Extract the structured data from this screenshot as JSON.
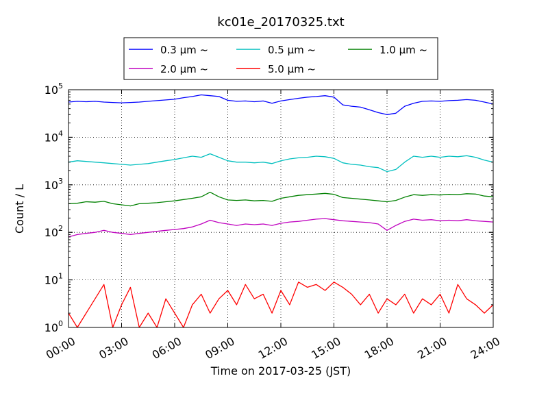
{
  "chart_data": {
    "type": "line",
    "title": "kc01e_20170325.txt",
    "xlabel": "Time on 2017-03-25 (JST)",
    "ylabel": "Count / L",
    "x_range_hours": [
      0,
      24
    ],
    "ylim": [
      1,
      100000
    ],
    "yscale": "log",
    "grid": true,
    "legend_position": "top",
    "x_tick_labels": [
      "00:00",
      "03:00",
      "06:00",
      "09:00",
      "12:00",
      "15:00",
      "18:00",
      "21:00",
      "24:00"
    ],
    "y_tick_labels": [
      {
        "base": "10",
        "exp": "0",
        "value": 1
      },
      {
        "base": "10",
        "exp": "1",
        "value": 10
      },
      {
        "base": "10",
        "exp": "2",
        "value": 100
      },
      {
        "base": "10",
        "exp": "3",
        "value": 1000
      },
      {
        "base": "10",
        "exp": "4",
        "value": 10000
      },
      {
        "base": "10",
        "exp": "5",
        "value": 100000
      }
    ],
    "series": [
      {
        "name": "0.3 µm ~",
        "color": "#0000ff",
        "points": [
          [
            0,
            55000
          ],
          [
            0.5,
            57000
          ],
          [
            1,
            56000
          ],
          [
            1.5,
            57000
          ],
          [
            2,
            55000
          ],
          [
            2.5,
            54000
          ],
          [
            3,
            53000
          ],
          [
            3.5,
            54000
          ],
          [
            4,
            55000
          ],
          [
            4.5,
            57000
          ],
          [
            5,
            59000
          ],
          [
            5.5,
            61000
          ],
          [
            6,
            63000
          ],
          [
            6.5,
            68000
          ],
          [
            7,
            72000
          ],
          [
            7.5,
            78000
          ],
          [
            8,
            75000
          ],
          [
            8.5,
            72000
          ],
          [
            9,
            60000
          ],
          [
            9.5,
            57000
          ],
          [
            10,
            58000
          ],
          [
            10.5,
            56000
          ],
          [
            11,
            58000
          ],
          [
            11.5,
            52000
          ],
          [
            12,
            58000
          ],
          [
            12.5,
            62000
          ],
          [
            13,
            66000
          ],
          [
            13.5,
            70000
          ],
          [
            14,
            72000
          ],
          [
            14.5,
            75000
          ],
          [
            15,
            70000
          ],
          [
            15.5,
            48000
          ],
          [
            16,
            45000
          ],
          [
            16.5,
            43000
          ],
          [
            17,
            38000
          ],
          [
            17.5,
            33000
          ],
          [
            18,
            30000
          ],
          [
            18.5,
            32000
          ],
          [
            19,
            45000
          ],
          [
            19.5,
            52000
          ],
          [
            20,
            57000
          ],
          [
            20.5,
            58000
          ],
          [
            21,
            57000
          ],
          [
            21.5,
            59000
          ],
          [
            22,
            60000
          ],
          [
            22.5,
            62000
          ],
          [
            23,
            60000
          ],
          [
            23.5,
            55000
          ],
          [
            24,
            50000
          ]
        ]
      },
      {
        "name": "0.5 µm ~",
        "color": "#00bfbf",
        "points": [
          [
            0,
            3000
          ],
          [
            0.5,
            3200
          ],
          [
            1,
            3100
          ],
          [
            1.5,
            3000
          ],
          [
            2,
            2900
          ],
          [
            2.5,
            2800
          ],
          [
            3,
            2700
          ],
          [
            3.5,
            2600
          ],
          [
            4,
            2700
          ],
          [
            4.5,
            2800
          ],
          [
            5,
            3000
          ],
          [
            5.5,
            3200
          ],
          [
            6,
            3400
          ],
          [
            6.5,
            3700
          ],
          [
            7,
            4000
          ],
          [
            7.5,
            3800
          ],
          [
            8,
            4500
          ],
          [
            8.5,
            3800
          ],
          [
            9,
            3200
          ],
          [
            9.5,
            3000
          ],
          [
            10,
            3000
          ],
          [
            10.5,
            2900
          ],
          [
            11,
            3000
          ],
          [
            11.5,
            2800
          ],
          [
            12,
            3200
          ],
          [
            12.5,
            3500
          ],
          [
            13,
            3700
          ],
          [
            13.5,
            3800
          ],
          [
            14,
            4000
          ],
          [
            14.5,
            3900
          ],
          [
            15,
            3600
          ],
          [
            15.5,
            2900
          ],
          [
            16,
            2700
          ],
          [
            16.5,
            2600
          ],
          [
            17,
            2400
          ],
          [
            17.5,
            2300
          ],
          [
            18,
            1900
          ],
          [
            18.5,
            2100
          ],
          [
            19,
            3000
          ],
          [
            19.5,
            4000
          ],
          [
            20,
            3800
          ],
          [
            20.5,
            4000
          ],
          [
            21,
            3800
          ],
          [
            21.5,
            4000
          ],
          [
            22,
            3900
          ],
          [
            22.5,
            4100
          ],
          [
            23,
            3800
          ],
          [
            23.5,
            3300
          ],
          [
            24,
            3000
          ]
        ]
      },
      {
        "name": "1.0 µm ~",
        "color": "#008000",
        "points": [
          [
            0,
            400
          ],
          [
            0.5,
            410
          ],
          [
            1,
            440
          ],
          [
            1.5,
            430
          ],
          [
            2,
            450
          ],
          [
            2.5,
            400
          ],
          [
            3,
            380
          ],
          [
            3.5,
            360
          ],
          [
            4,
            400
          ],
          [
            4.5,
            410
          ],
          [
            5,
            420
          ],
          [
            5.5,
            440
          ],
          [
            6,
            460
          ],
          [
            6.5,
            490
          ],
          [
            7,
            520
          ],
          [
            7.5,
            560
          ],
          [
            8,
            700
          ],
          [
            8.5,
            560
          ],
          [
            9,
            480
          ],
          [
            9.5,
            470
          ],
          [
            10,
            480
          ],
          [
            10.5,
            460
          ],
          [
            11,
            470
          ],
          [
            11.5,
            450
          ],
          [
            12,
            520
          ],
          [
            12.5,
            560
          ],
          [
            13,
            600
          ],
          [
            13.5,
            620
          ],
          [
            14,
            640
          ],
          [
            14.5,
            660
          ],
          [
            15,
            630
          ],
          [
            15.5,
            540
          ],
          [
            16,
            520
          ],
          [
            16.5,
            500
          ],
          [
            17,
            480
          ],
          [
            17.5,
            460
          ],
          [
            18,
            440
          ],
          [
            18.5,
            470
          ],
          [
            19,
            550
          ],
          [
            19.5,
            620
          ],
          [
            20,
            600
          ],
          [
            20.5,
            620
          ],
          [
            21,
            610
          ],
          [
            21.5,
            630
          ],
          [
            22,
            620
          ],
          [
            22.5,
            650
          ],
          [
            23,
            640
          ],
          [
            23.5,
            580
          ],
          [
            24,
            560
          ]
        ]
      },
      {
        "name": "2.0 µm ~",
        "color": "#bf00bf",
        "points": [
          [
            0,
            80
          ],
          [
            0.5,
            90
          ],
          [
            1,
            95
          ],
          [
            1.5,
            100
          ],
          [
            2,
            110
          ],
          [
            2.5,
            100
          ],
          [
            3,
            95
          ],
          [
            3.5,
            90
          ],
          [
            4,
            95
          ],
          [
            4.5,
            100
          ],
          [
            5,
            105
          ],
          [
            5.5,
            110
          ],
          [
            6,
            115
          ],
          [
            6.5,
            120
          ],
          [
            7,
            130
          ],
          [
            7.5,
            150
          ],
          [
            8,
            180
          ],
          [
            8.5,
            160
          ],
          [
            9,
            150
          ],
          [
            9.5,
            140
          ],
          [
            10,
            150
          ],
          [
            10.5,
            145
          ],
          [
            11,
            150
          ],
          [
            11.5,
            140
          ],
          [
            12,
            155
          ],
          [
            12.5,
            165
          ],
          [
            13,
            170
          ],
          [
            13.5,
            180
          ],
          [
            14,
            190
          ],
          [
            14.5,
            195
          ],
          [
            15,
            185
          ],
          [
            15.5,
            175
          ],
          [
            16,
            170
          ],
          [
            16.5,
            165
          ],
          [
            17,
            160
          ],
          [
            17.5,
            150
          ],
          [
            18,
            110
          ],
          [
            18.5,
            140
          ],
          [
            19,
            170
          ],
          [
            19.5,
            190
          ],
          [
            20,
            180
          ],
          [
            20.5,
            185
          ],
          [
            21,
            175
          ],
          [
            21.5,
            180
          ],
          [
            22,
            175
          ],
          [
            22.5,
            185
          ],
          [
            23,
            175
          ],
          [
            23.5,
            170
          ],
          [
            24,
            165
          ]
        ]
      },
      {
        "name": "5.0 µm ~",
        "color": "#ff0000",
        "points": [
          [
            0,
            2
          ],
          [
            0.5,
            1
          ],
          [
            1,
            2
          ],
          [
            1.5,
            4
          ],
          [
            2,
            8
          ],
          [
            2.5,
            1
          ],
          [
            3,
            3
          ],
          [
            3.5,
            7
          ],
          [
            4,
            1
          ],
          [
            4.5,
            2
          ],
          [
            5,
            1
          ],
          [
            5.5,
            4
          ],
          [
            6,
            2
          ],
          [
            6.5,
            1
          ],
          [
            7,
            3
          ],
          [
            7.5,
            5
          ],
          [
            8,
            2
          ],
          [
            8.5,
            4
          ],
          [
            9,
            6
          ],
          [
            9.5,
            3
          ],
          [
            10,
            8
          ],
          [
            10.5,
            4
          ],
          [
            11,
            5
          ],
          [
            11.5,
            2
          ],
          [
            12,
            6
          ],
          [
            12.5,
            3
          ],
          [
            13,
            9
          ],
          [
            13.5,
            7
          ],
          [
            14,
            8
          ],
          [
            14.5,
            6
          ],
          [
            15,
            9
          ],
          [
            15.5,
            7
          ],
          [
            16,
            5
          ],
          [
            16.5,
            3
          ],
          [
            17,
            5
          ],
          [
            17.5,
            2
          ],
          [
            18,
            4
          ],
          [
            18.5,
            3
          ],
          [
            19,
            5
          ],
          [
            19.5,
            2
          ],
          [
            20,
            4
          ],
          [
            20.5,
            3
          ],
          [
            21,
            5
          ],
          [
            21.5,
            2
          ],
          [
            22,
            8
          ],
          [
            22.5,
            4
          ],
          [
            23,
            3
          ],
          [
            23.5,
            2
          ],
          [
            24,
            3
          ]
        ]
      }
    ]
  }
}
